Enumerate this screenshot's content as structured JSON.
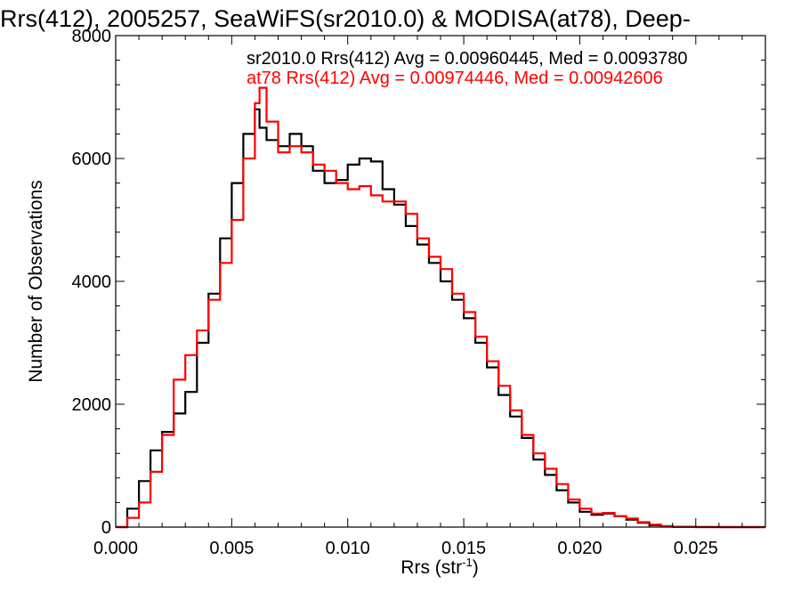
{
  "chart_data": {
    "type": "line",
    "title": "Rrs(412), 2005257, SeaWiFS(sr2010.0) & MODISA(at78), Deep-",
    "xlabel_main": "Rrs (str",
    "xlabel_sup": "-1",
    "xlabel_tail": ")",
    "ylabel": "Number of Observations",
    "xlim": [
      0,
      0.028
    ],
    "ylim": [
      0,
      8000
    ],
    "x_ticks": [
      0.0,
      0.005,
      0.01,
      0.015,
      0.02,
      0.025
    ],
    "x_tick_labels": [
      "0.000",
      "0.005",
      "0.010",
      "0.015",
      "0.020",
      "0.025"
    ],
    "y_ticks": [
      0,
      2000,
      4000,
      6000,
      8000
    ],
    "y_tick_labels": [
      "0",
      "2000",
      "4000",
      "6000",
      "8000"
    ],
    "legend": {
      "entries": [
        {
          "text": "sr2010.0 Rrs(412) Avg = 0.00960445, Med = 0.0093780",
          "color": "#000000"
        },
        {
          "text": "at78 Rrs(412) Avg = 0.00974446, Med = 0.00942606",
          "color": "#ff0000"
        }
      ]
    },
    "series": [
      {
        "color": "#000000",
        "x": [
          0.0,
          0.0005,
          0.001,
          0.0015,
          0.002,
          0.0025,
          0.003,
          0.0035,
          0.004,
          0.0045,
          0.005,
          0.0055,
          0.006,
          0.0062,
          0.0065,
          0.007,
          0.0075,
          0.008,
          0.0085,
          0.009,
          0.0095,
          0.01,
          0.0105,
          0.011,
          0.0115,
          0.012,
          0.0125,
          0.013,
          0.0135,
          0.014,
          0.0145,
          0.015,
          0.0155,
          0.016,
          0.0165,
          0.017,
          0.0175,
          0.018,
          0.0185,
          0.019,
          0.0195,
          0.02,
          0.0205,
          0.021,
          0.0215,
          0.022,
          0.0225,
          0.023,
          0.0235,
          0.024,
          0.025,
          0.026,
          0.027,
          0.028
        ],
        "values": [
          0,
          300,
          750,
          1250,
          1550,
          1850,
          2200,
          3000,
          3800,
          4700,
          5600,
          6400,
          6800,
          6500,
          6300,
          6200,
          6400,
          6200,
          5800,
          5600,
          5650,
          5900,
          6000,
          5950,
          5500,
          5250,
          4900,
          4600,
          4300,
          4000,
          3700,
          3400,
          3000,
          2600,
          2150,
          1800,
          1450,
          1100,
          850,
          600,
          400,
          250,
          200,
          220,
          180,
          120,
          70,
          30,
          15,
          5,
          0,
          0,
          0,
          0
        ]
      },
      {
        "color": "#ff0000",
        "x": [
          0.0,
          0.0005,
          0.001,
          0.0015,
          0.002,
          0.0025,
          0.003,
          0.0035,
          0.004,
          0.0045,
          0.005,
          0.0055,
          0.006,
          0.0062,
          0.0065,
          0.007,
          0.0075,
          0.008,
          0.0085,
          0.009,
          0.0095,
          0.01,
          0.0105,
          0.011,
          0.0115,
          0.012,
          0.0125,
          0.013,
          0.0135,
          0.014,
          0.0145,
          0.015,
          0.0155,
          0.016,
          0.0165,
          0.017,
          0.0175,
          0.018,
          0.0185,
          0.019,
          0.0195,
          0.02,
          0.0205,
          0.021,
          0.0215,
          0.022,
          0.0225,
          0.023,
          0.0235,
          0.024,
          0.025,
          0.026,
          0.027,
          0.028
        ],
        "values": [
          0,
          150,
          400,
          900,
          1500,
          2400,
          2800,
          3200,
          3700,
          4300,
          5000,
          6000,
          6900,
          7150,
          6600,
          6100,
          6200,
          6100,
          5900,
          5800,
          5600,
          5500,
          5550,
          5400,
          5300,
          5300,
          5100,
          4700,
          4400,
          4200,
          3800,
          3500,
          3100,
          2700,
          2300,
          1900,
          1500,
          1200,
          950,
          700,
          450,
          300,
          220,
          230,
          180,
          140,
          80,
          40,
          15,
          5,
          2,
          0,
          0,
          0
        ]
      }
    ]
  }
}
